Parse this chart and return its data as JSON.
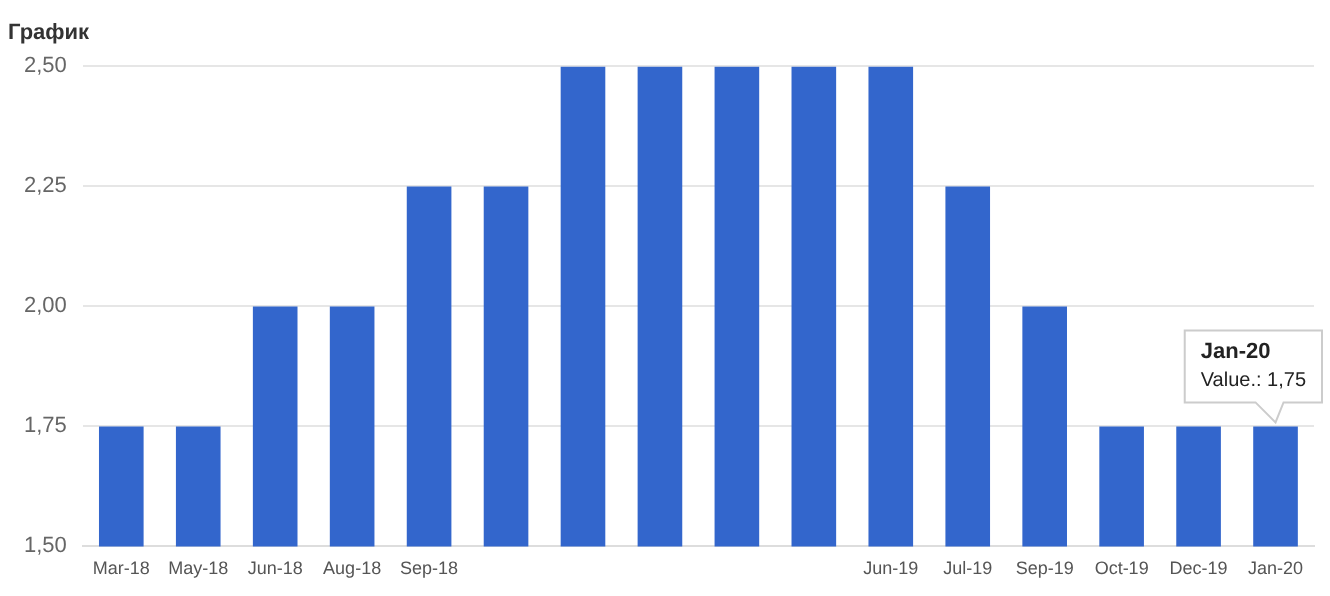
{
  "chart_data": {
    "type": "bar",
    "title": "График",
    "categories": [
      "Mar-18",
      "May-18",
      "Jun-18",
      "Aug-18",
      "Sep-18",
      null,
      null,
      null,
      null,
      null,
      "Jun-19",
      "Jul-19",
      "Sep-19",
      "Oct-19",
      "Dec-19",
      "Jan-20"
    ],
    "values": [
      1.75,
      1.75,
      2.0,
      2.0,
      2.25,
      2.25,
      2.5,
      2.5,
      2.5,
      2.5,
      2.5,
      2.25,
      2.0,
      1.75,
      1.75,
      1.75
    ],
    "color": "#3366cc",
    "ylim": [
      1.5,
      2.5
    ],
    "yticks": [
      {
        "value": 1.5,
        "label": "1,50"
      },
      {
        "value": 1.75,
        "label": "1,75"
      },
      {
        "value": 2.0,
        "label": "2,00"
      },
      {
        "value": 2.25,
        "label": "2,25"
      },
      {
        "value": 2.5,
        "label": "2,50"
      }
    ],
    "grid": "y",
    "annotations": [
      {
        "text": "Jan-20\nValue.: 1,75",
        "x": "Jan-20",
        "y": 1.75
      }
    ]
  }
}
